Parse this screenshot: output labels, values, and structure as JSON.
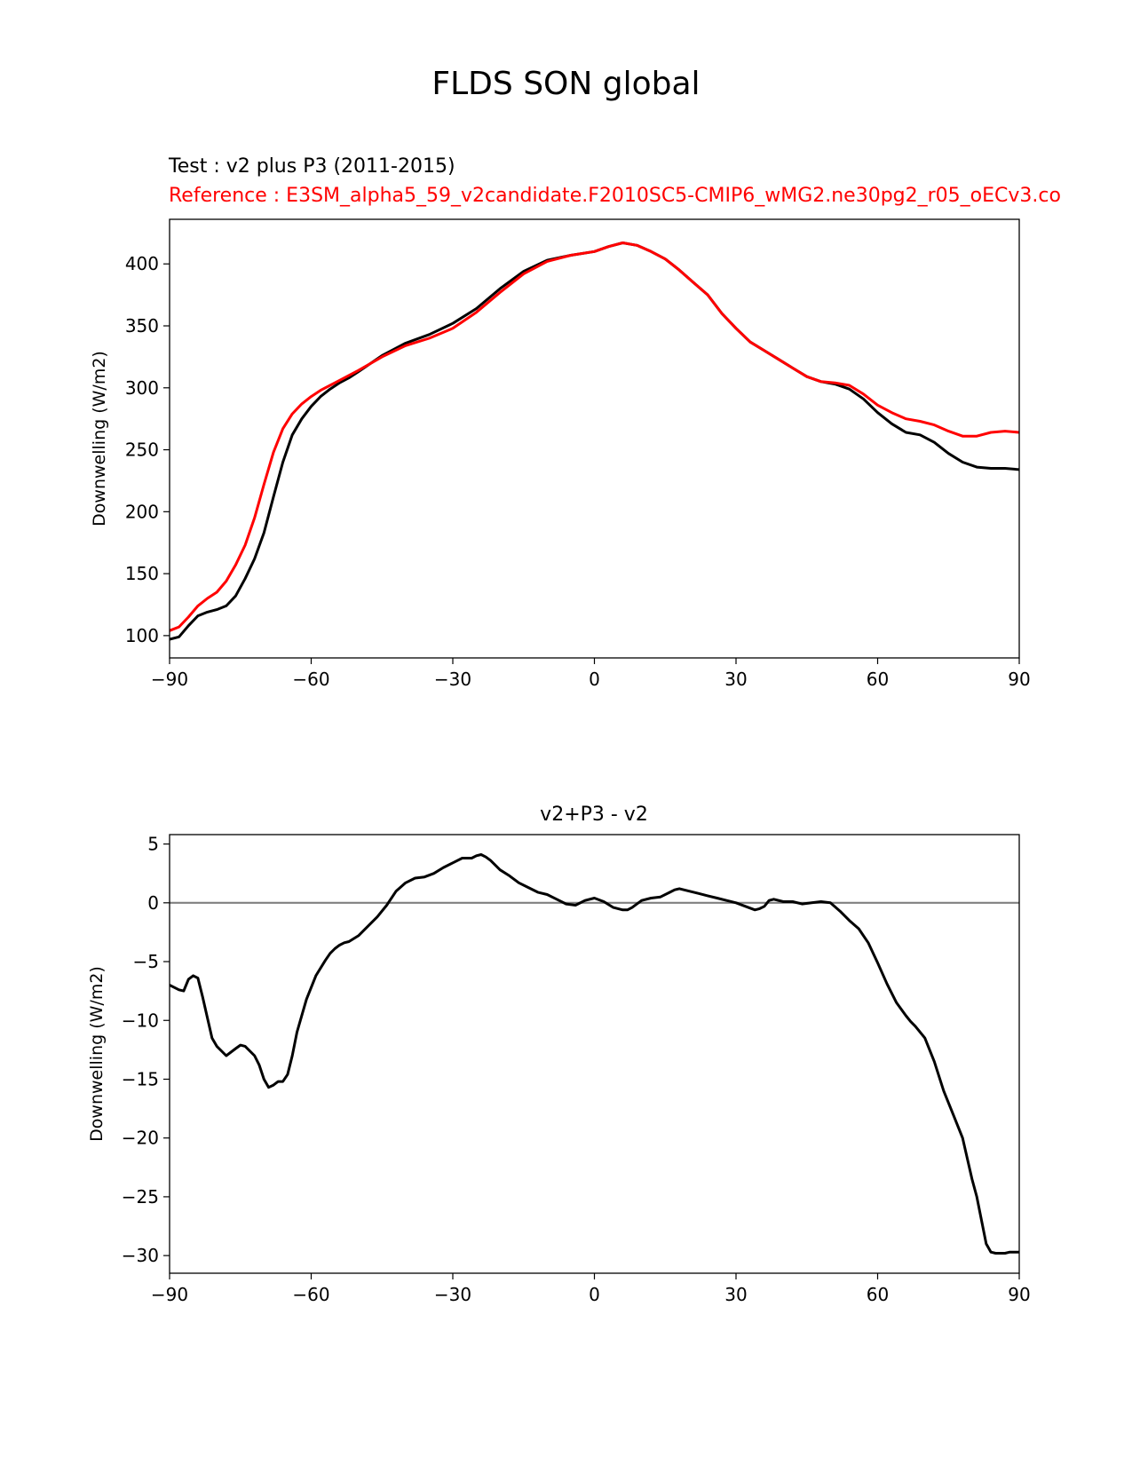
{
  "figure": {
    "title": "FLDS SON global",
    "top_panel": {
      "test_label": "Test : v2 plus P3 (2011-2015)",
      "reference_label": "Reference : E3SM_alpha5_59_v2candidate.F2010SC5-CMIP6_wMG2.ne30pg2_r05_oECv3.co"
    },
    "bottom_panel": {
      "title": "v2+P3 - v2"
    }
  },
  "chart_data": [
    {
      "type": "line",
      "title": "",
      "xlabel": "",
      "ylabel": "Downwelling (W/m2)",
      "xlim": [
        -90,
        90
      ],
      "ylim": [
        82,
        436
      ],
      "xticks": [
        -90,
        -60,
        -30,
        0,
        30,
        60,
        90
      ],
      "yticks": [
        100,
        150,
        200,
        250,
        300,
        350,
        400
      ],
      "grid": false,
      "colors": {
        "test": "#000000",
        "reference": "#ff0000"
      },
      "series": [
        {
          "role": "test",
          "color": "#000000",
          "x": [
            -90,
            -88,
            -86,
            -84,
            -82,
            -80,
            -78,
            -76,
            -74,
            -72,
            -70,
            -68,
            -66,
            -64,
            -62,
            -60,
            -58,
            -56,
            -54,
            -52,
            -50,
            -45,
            -40,
            -35,
            -30,
            -25,
            -20,
            -15,
            -10,
            -5,
            0,
            3,
            6,
            9,
            12,
            15,
            18,
            21,
            24,
            27,
            30,
            33,
            36,
            39,
            42,
            45,
            48,
            51,
            54,
            57,
            60,
            63,
            66,
            69,
            72,
            75,
            78,
            81,
            84,
            87,
            90
          ],
          "y": [
            97,
            99,
            108,
            116,
            119,
            121,
            124,
            132,
            146,
            162,
            183,
            212,
            240,
            262,
            275,
            285,
            293,
            299,
            304,
            308,
            313,
            326,
            336,
            343,
            352,
            364,
            380,
            394,
            403,
            407,
            410,
            414,
            417,
            415,
            410,
            404,
            395,
            385,
            375,
            360,
            348,
            337,
            330,
            323,
            316,
            309,
            305,
            303,
            299,
            291,
            280,
            271,
            264,
            262,
            256,
            247,
            240,
            236,
            235,
            235,
            234
          ]
        },
        {
          "role": "reference",
          "color": "#ff0000",
          "x": [
            -90,
            -88,
            -86,
            -84,
            -82,
            -80,
            -78,
            -76,
            -74,
            -72,
            -70,
            -68,
            -66,
            -64,
            -62,
            -60,
            -58,
            -56,
            -54,
            -52,
            -50,
            -45,
            -40,
            -35,
            -30,
            -25,
            -20,
            -15,
            -10,
            -5,
            0,
            3,
            6,
            9,
            12,
            15,
            18,
            21,
            24,
            27,
            30,
            33,
            36,
            39,
            42,
            45,
            48,
            51,
            54,
            57,
            60,
            63,
            66,
            69,
            72,
            75,
            78,
            81,
            84,
            87,
            90
          ],
          "y": [
            104,
            107,
            115,
            124,
            130,
            135,
            144,
            157,
            173,
            195,
            222,
            248,
            267,
            279,
            287,
            293,
            298,
            302,
            306,
            310,
            314,
            325,
            334,
            340,
            348,
            361,
            377,
            392,
            402,
            407,
            410,
            414,
            417,
            415,
            410,
            404,
            395,
            385,
            375,
            360,
            348,
            337,
            330,
            323,
            316,
            309,
            305,
            304,
            302,
            295,
            286,
            280,
            275,
            273,
            270,
            265,
            261,
            261,
            264,
            265,
            264
          ]
        }
      ]
    },
    {
      "type": "line",
      "title": "v2+P3 - v2",
      "xlabel": "",
      "ylabel": "Downwelling (W/m2)",
      "xlim": [
        -90,
        90
      ],
      "ylim": [
        -31.5,
        5.8
      ],
      "xticks": [
        -90,
        -60,
        -30,
        0,
        30,
        60,
        90
      ],
      "yticks": [
        5,
        0,
        -5,
        -10,
        -15,
        -20,
        -25,
        -30
      ],
      "grid": false,
      "reference_line": {
        "y": 0,
        "color": "#808080"
      },
      "series": [
        {
          "role": "difference",
          "color": "#000000",
          "x": [
            -90,
            -88,
            -87,
            -86,
            -85,
            -84,
            -83,
            -81,
            -80,
            -78,
            -76,
            -75,
            -74,
            -72,
            -71,
            -70,
            -69,
            -68,
            -67,
            -66,
            -65,
            -64,
            -63,
            -61,
            -59,
            -57,
            -56,
            -55,
            -54,
            -53,
            -52,
            -50,
            -48,
            -46,
            -44,
            -42,
            -40,
            -38,
            -36,
            -34,
            -32,
            -30,
            -28,
            -26,
            -25,
            -24,
            -23,
            -22,
            -20,
            -18,
            -16,
            -14,
            -12,
            -10,
            -8,
            -6,
            -4,
            -2,
            0,
            2,
            4,
            6,
            7,
            8,
            9,
            10,
            12,
            14,
            16,
            17,
            18,
            20,
            22,
            24,
            26,
            28,
            30,
            32,
            34,
            35,
            36,
            37,
            38,
            40,
            42,
            44,
            46,
            48,
            50,
            52,
            54,
            56,
            58,
            60,
            62,
            64,
            66,
            67,
            68,
            70,
            72,
            74,
            76,
            78,
            80,
            81,
            82,
            83,
            84,
            85,
            86,
            87,
            88,
            90
          ],
          "y": [
            -7.0,
            -7.4,
            -7.5,
            -6.5,
            -6.2,
            -6.4,
            -8.0,
            -11.5,
            -12.2,
            -13.0,
            -12.4,
            -12.1,
            -12.2,
            -13.0,
            -13.8,
            -15.0,
            -15.7,
            -15.5,
            -15.2,
            -15.2,
            -14.6,
            -13.0,
            -11.0,
            -8.2,
            -6.2,
            -4.9,
            -4.3,
            -3.9,
            -3.6,
            -3.4,
            -3.3,
            -2.8,
            -2.0,
            -1.2,
            -0.2,
            1.0,
            1.7,
            2.1,
            2.2,
            2.5,
            3.0,
            3.4,
            3.8,
            3.8,
            4.0,
            4.1,
            3.9,
            3.6,
            2.8,
            2.3,
            1.7,
            1.3,
            0.9,
            0.7,
            0.3,
            -0.1,
            -0.2,
            0.2,
            0.4,
            0.1,
            -0.4,
            -0.6,
            -0.6,
            -0.4,
            -0.1,
            0.2,
            0.4,
            0.5,
            0.9,
            1.1,
            1.2,
            1.0,
            0.8,
            0.6,
            0.4,
            0.2,
            0.0,
            -0.3,
            -0.6,
            -0.5,
            -0.3,
            0.2,
            0.3,
            0.1,
            0.1,
            -0.1,
            0.0,
            0.1,
            0.0,
            -0.7,
            -1.5,
            -2.2,
            -3.4,
            -5.1,
            -6.9,
            -8.5,
            -9.6,
            -10.1,
            -10.5,
            -11.5,
            -13.5,
            -16.0,
            -18.0,
            -20.0,
            -23.5,
            -25.0,
            -27.0,
            -29.0,
            -29.7,
            -29.8,
            -29.8,
            -29.8,
            -29.7,
            -29.7
          ]
        }
      ]
    }
  ]
}
